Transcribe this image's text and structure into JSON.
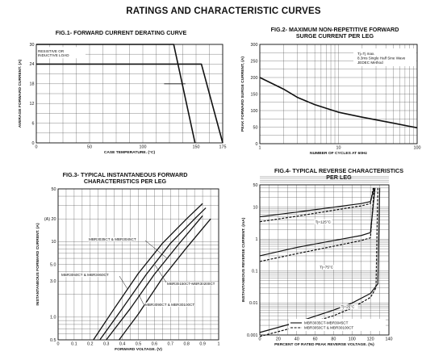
{
  "page_title": "RATINGS AND CHARACTERISTIC CURVES",
  "chart_data": [
    {
      "type": "line",
      "title": "FIG.1- FORWARD CURRENT DERATING CURVE",
      "xlabel": "CASE TEMPERATURE. (°C)",
      "ylabel": "AVERAGE FORWARD CURRENT. (A)",
      "xlim": [
        0,
        175
      ],
      "ylim": [
        0,
        30
      ],
      "x_ticks": [
        0,
        50,
        100,
        150,
        175
      ],
      "y_ticks": [
        0,
        6,
        12,
        18,
        24,
        30
      ],
      "grid": true,
      "annotations": [
        "RESISTIVE OR\nINDUCTIVE LOAD"
      ],
      "series": [
        {
          "x": [
            0,
            129,
            149
          ],
          "y": [
            30,
            30,
            0
          ]
        },
        {
          "x": [
            0,
            155,
            175
          ],
          "y": [
            24,
            24,
            0
          ]
        }
      ]
    },
    {
      "type": "line",
      "title": "FIG.2- MAXIMUM NON-REPETITIVE FORWARD\nSURGE CURRENT PER LEG",
      "xlabel": "NUMBER OF CYCLES AT 60Hz",
      "ylabel": "PEAK FORWARD SURGE CURRENT, (A)",
      "x_scale": "log",
      "xlim": [
        1,
        100
      ],
      "ylim": [
        0,
        300
      ],
      "x_ticks": [
        1,
        10,
        100
      ],
      "y_ticks": [
        0,
        50,
        100,
        150,
        200,
        250,
        300
      ],
      "grid": true,
      "annotations": [
        "Tj=Tj max.\n8.3ms Single Half Sine Wave\nJEDEC Method"
      ],
      "series": [
        {
          "x": [
            1,
            2,
            3,
            5,
            10,
            20,
            50,
            100
          ],
          "y": [
            200,
            165,
            140,
            118,
            95,
            80,
            62,
            48
          ]
        }
      ]
    },
    {
      "type": "line",
      "title": "FIG.3- TYPICAL INSTANTANEOUS FORWARD\nCHARACTERISTICS PER LEG",
      "xlabel": "FORWARD VOLTAGE. (V)",
      "ylabel": "INSTANTANEOUS FORWARD CURRENT. (A)",
      "y_scale": "log",
      "xlim": [
        0,
        1.0
      ],
      "ylim": [
        0.5,
        50
      ],
      "x_ticks": [
        0,
        0.1,
        0.2,
        0.3,
        0.4,
        0.5,
        0.6,
        0.7,
        0.8,
        0.9,
        1.0
      ],
      "y_ticks": [
        0.5,
        1.0,
        3.0,
        5.0,
        10,
        20,
        50
      ],
      "y_tick_labels": [
        "0.5",
        "1.0",
        "3.0",
        "5.0",
        "10",
        "(A) 20",
        "50"
      ],
      "grid": true,
      "annotations": [
        "MBR3035CT & MBR3045CT",
        "MBR3050CT & MBR3060CT",
        "MBR3090CT & MBR30100CT",
        "MBR30150CT-MBR30200CT"
      ],
      "series": [
        {
          "name": "MBR3035CT & MBR3045CT",
          "x": [
            0.22,
            0.35,
            0.5,
            0.65,
            0.8,
            0.9
          ],
          "y": [
            0.5,
            1.3,
            3.8,
            9.5,
            20,
            32
          ]
        },
        {
          "name": "MBR3050CT & MBR3060CT",
          "x": [
            0.26,
            0.4,
            0.55,
            0.7,
            0.85,
            0.92
          ],
          "y": [
            0.5,
            1.3,
            3.7,
            9.5,
            20,
            28
          ]
        },
        {
          "name": "MBR3090CT & MBR30100CT",
          "x": [
            0.3,
            0.45,
            0.6,
            0.75,
            0.9
          ],
          "y": [
            0.5,
            1.3,
            3.7,
            9.2,
            22
          ]
        },
        {
          "name": "MBR30150CT-MBR30200CT",
          "x": [
            0.38,
            0.5,
            0.65,
            0.8,
            0.95
          ],
          "y": [
            0.5,
            1.1,
            3.3,
            8.3,
            20
          ]
        }
      ]
    },
    {
      "type": "line",
      "title": "FIG.4- TYPICAL REVERSE CHARACTERISTICS\nPER LEG",
      "xlabel": "PERCENT OF RATED PEAK REVERSE VOLTAGE. (%)",
      "ylabel": "INSTANTANEOUS REVERSE CURRENT. (mA)",
      "y_scale": "log",
      "xlim": [
        0,
        140
      ],
      "ylim": [
        0.001,
        50
      ],
      "x_ticks": [
        0,
        20,
        40,
        60,
        80,
        100,
        120,
        140
      ],
      "y_ticks": [
        0.001,
        0.01,
        0.1,
        1,
        10,
        50
      ],
      "grid": true,
      "annotations": [
        "Tj=125°C",
        "Tj=75°C",
        "Tj=25°C"
      ],
      "legend": [
        "MBR3035CT-MBR3045CT",
        "MBR3050CT & MBR30100CT"
      ],
      "series": [
        {
          "name": "MBR3035CT-MBR3045CT",
          "line": "solid",
          "x": [
            0,
            40,
            80,
            110,
            120,
            124
          ],
          "y": [
            5,
            7,
            10,
            13,
            15,
            40
          ]
        },
        {
          "name": "MBR3050CT & MBR30100CT",
          "line": "dashed",
          "x": [
            0,
            40,
            80,
            110,
            120,
            123
          ],
          "y": [
            3.5,
            5.2,
            8,
            11,
            13,
            40
          ]
        },
        {
          "name": "MBR3035CT-MBR3045CT",
          "line": "solid",
          "x": [
            0,
            40,
            80,
            110,
            120,
            125
          ],
          "y": [
            0.3,
            0.55,
            0.9,
            1.3,
            1.6,
            40
          ]
        },
        {
          "name": "MBR3050CT & MBR30100CT",
          "line": "dashed",
          "x": [
            0,
            40,
            80,
            110,
            120,
            124
          ],
          "y": [
            0.2,
            0.35,
            0.6,
            0.9,
            1.1,
            40
          ]
        },
        {
          "name": "MBR3035CT-MBR3045CT",
          "line": "solid",
          "x": [
            0,
            40,
            80,
            100,
            120,
            128,
            130
          ],
          "y": [
            0.0012,
            0.0025,
            0.006,
            0.01,
            0.02,
            0.04,
            40
          ]
        },
        {
          "name": "MBR3050CT & MBR30100CT",
          "line": "dashed",
          "x": [
            0,
            40,
            80,
            100,
            120,
            126,
            128
          ],
          "y": [
            0.0009,
            0.0018,
            0.004,
            0.007,
            0.015,
            0.03,
            40
          ]
        }
      ]
    }
  ]
}
